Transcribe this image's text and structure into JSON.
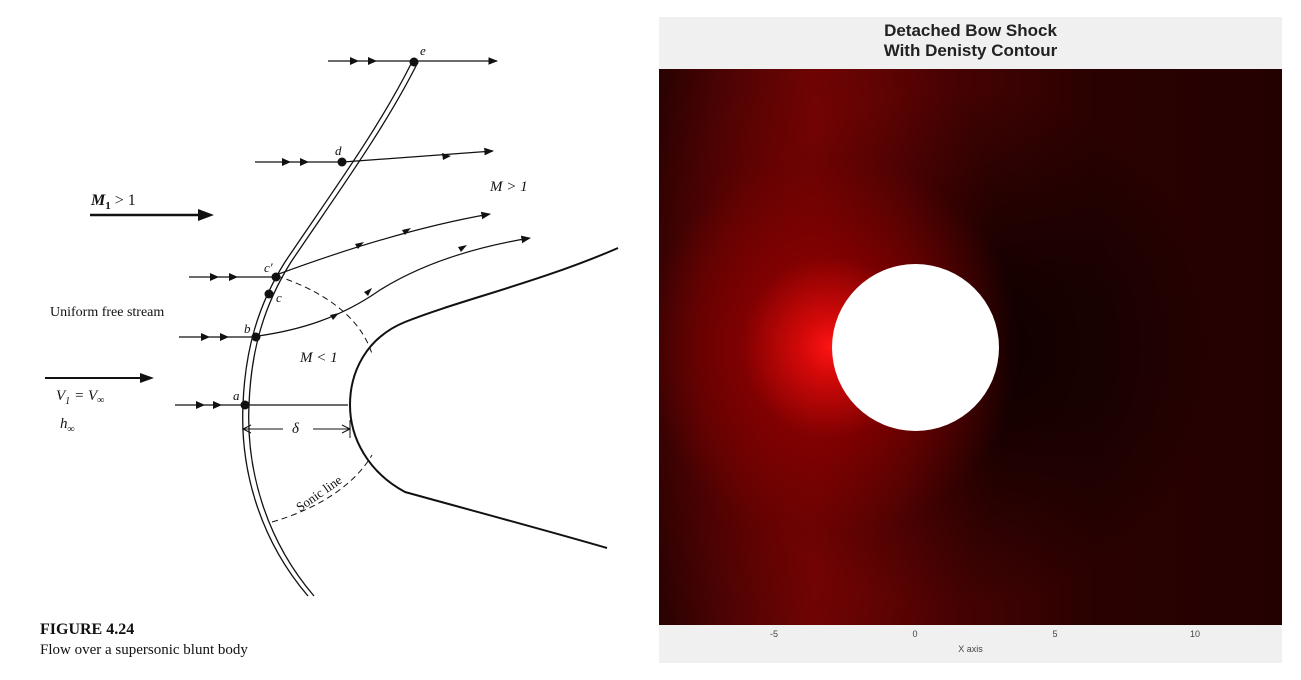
{
  "diagram": {
    "mach_upstream": "M",
    "mach_upstream_sub": "1",
    "mach_upstream_rel": "> 1",
    "mach_super": "M > 1",
    "mach_sub": "M < 1",
    "free_stream": "Uniform free stream",
    "velocity_sym": "V",
    "velocity_sub": "1",
    "velocity_rest": "= V",
    "velocity_inf": "∞",
    "enthalpy_sym": "h",
    "enthalpy_sub": "∞",
    "standoff": "δ",
    "sonic_line": "Sonic line",
    "points": [
      "a",
      "b",
      "c",
      "c′",
      "d",
      "e"
    ]
  },
  "caption": {
    "figure": "FIGURE 4.24",
    "description": "Flow over a supersonic blunt body"
  },
  "plot": {
    "title_line1": "Detached Bow Shock",
    "title_line2": "With Denisty Contour",
    "xlabel": "X axis",
    "xticks": [
      "-5",
      "0",
      "5",
      "10"
    ],
    "colormap": [
      "#000000",
      "#5a0000",
      "#ff1a1a"
    ],
    "body_color": "#ffffff"
  }
}
